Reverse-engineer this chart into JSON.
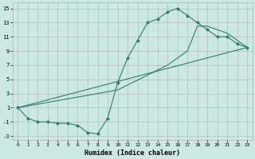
{
  "xlabel": "Humidex (Indice chaleur)",
  "bg_color": "#cce8e4",
  "grid_color": "#b0b0b0",
  "line_color": "#2d7d6e",
  "xlim": [
    -0.5,
    23.5
  ],
  "ylim": [
    -3.5,
    15.8
  ],
  "xticks": [
    0,
    1,
    2,
    3,
    4,
    5,
    6,
    7,
    8,
    9,
    10,
    11,
    12,
    13,
    14,
    15,
    16,
    17,
    18,
    19,
    20,
    21,
    22,
    23
  ],
  "yticks": [
    -3,
    -1,
    1,
    3,
    5,
    7,
    9,
    11,
    13,
    15
  ],
  "series1_x": [
    0,
    1,
    2,
    3,
    4,
    5,
    6,
    7,
    8,
    9,
    10,
    11,
    12,
    13,
    14,
    15,
    16,
    17,
    18,
    19,
    20,
    21,
    22,
    23
  ],
  "series1_y": [
    1,
    -0.5,
    -1,
    -1,
    -1.2,
    -1.2,
    -1.5,
    -2.5,
    -2.7,
    -0.5,
    4.5,
    8,
    10.5,
    13,
    13.5,
    14.5,
    15,
    14,
    13,
    12,
    11,
    11,
    10,
    9.5
  ],
  "series2_x": [
    0,
    23
  ],
  "series2_y": [
    1,
    9.5
  ],
  "series3_x": [
    0,
    10,
    15,
    17,
    18,
    19,
    20,
    21,
    22,
    23
  ],
  "series3_y": [
    1,
    3.5,
    7,
    9,
    12.5,
    12.5,
    12,
    11.5,
    10.5,
    9.5
  ],
  "xlabel_fontsize": 6,
  "tick_fontsize": 5
}
